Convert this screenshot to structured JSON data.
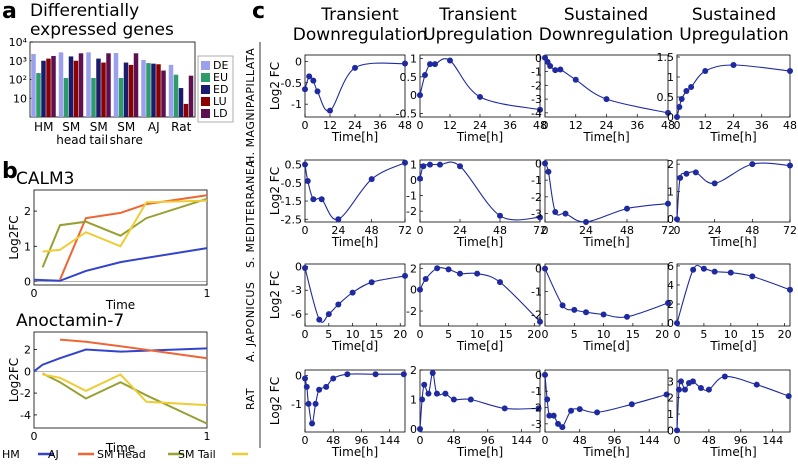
{
  "panel_labels": {
    "a": "a",
    "b": "b",
    "c": "c"
  },
  "panel_a_title": [
    "Differentially",
    "expressed genes"
  ],
  "panel_c_col_titles": [
    [
      "Transient",
      "Downregulation"
    ],
    [
      "Transient",
      "Upregulation"
    ],
    [
      "Sustained",
      "Downregulation"
    ],
    [
      "Sustained",
      "Upregulation"
    ]
  ],
  "panel_c_row_labels": [
    "H. MAGNIPAPILLATA",
    "S. MEDITERRANEA",
    "A. JAPONICUS",
    "RAT"
  ],
  "colors": {
    "DE": "#9aa0ee",
    "EU": "#2e9b6a",
    "ED": "#1a1a6e",
    "LU": "#8b0000",
    "LD": "#5c1050",
    "HM": "#3344cc",
    "AJ": "#ee6633",
    "SM_Head": "#99a033",
    "SM_Tail": "#eecc33",
    "line_c": "#1f2aa0"
  },
  "chart_data": [
    {
      "id": "a",
      "type": "bar",
      "title": "Differentially expressed genes",
      "log_scale": true,
      "ylim": [
        1,
        10000
      ],
      "y_ticks": [
        "10",
        "10²",
        "10³",
        "10⁴"
      ],
      "categories": [
        "HM",
        "SM\nhead",
        "SM\ntail",
        "SM\nshare",
        "AJ",
        "Rat"
      ],
      "category_labels": [
        [
          "HM"
        ],
        [
          "SM",
          "head"
        ],
        [
          "SM",
          "tail"
        ],
        [
          "SM",
          "share"
        ],
        [
          "AJ"
        ],
        [
          "Rat"
        ]
      ],
      "legend_position": "right",
      "series": [
        {
          "name": "DE",
          "values": [
            2300,
            2800,
            2800,
            2600,
            1100,
            600
          ]
        },
        {
          "name": "EU",
          "values": [
            220,
            120,
            120,
            120,
            750,
            180
          ]
        },
        {
          "name": "ED",
          "values": [
            1000,
            1700,
            1300,
            800,
            700,
            35
          ]
        },
        {
          "name": "LU",
          "values": [
            1300,
            1000,
            800,
            600,
            650,
            5
          ]
        },
        {
          "name": "LD",
          "values": [
            1800,
            2500,
            2500,
            2500,
            300,
            160
          ]
        }
      ]
    },
    {
      "id": "b1",
      "type": "line",
      "title": "CALM3",
      "xlabel": "Time",
      "ylabel": "Log2FC",
      "xlim": [
        0,
        1
      ],
      "ylim": [
        -0.1,
        2.6
      ],
      "x_ticks": [
        "0",
        "1"
      ],
      "y_ticks": [
        0,
        1,
        2
      ],
      "series": [
        {
          "name": "HM",
          "x": [
            0,
            0.15,
            0.3,
            0.5,
            1.0
          ],
          "y": [
            0.05,
            0.02,
            0.3,
            0.55,
            0.95
          ]
        },
        {
          "name": "AJ",
          "x": [
            0.15,
            0.3,
            0.5,
            0.65,
            1.0
          ],
          "y": [
            0.05,
            1.8,
            1.95,
            2.2,
            2.45
          ]
        },
        {
          "name": "SM Head",
          "x": [
            0.05,
            0.15,
            0.3,
            0.5,
            0.65,
            1.0
          ],
          "y": [
            0.4,
            1.6,
            1.7,
            1.3,
            1.8,
            2.35
          ]
        },
        {
          "name": "SM Tail",
          "x": [
            0.05,
            0.15,
            0.3,
            0.5,
            0.65,
            1.0
          ],
          "y": [
            0.85,
            0.9,
            1.4,
            1.0,
            2.25,
            2.3
          ]
        }
      ]
    },
    {
      "id": "b2",
      "type": "line",
      "title": "Anoctamin-7",
      "xlabel": "Time",
      "ylabel": "Log2FC",
      "xlim": [
        0,
        1
      ],
      "ylim": [
        -5.2,
        3.6
      ],
      "x_ticks": [
        "0",
        "1"
      ],
      "y_ticks": [
        -4,
        -2,
        0,
        2
      ],
      "series": [
        {
          "name": "HM",
          "x": [
            0,
            0.05,
            0.15,
            0.3,
            0.5,
            1.0
          ],
          "y": [
            0,
            0.6,
            1.2,
            2.0,
            1.8,
            2.1
          ]
        },
        {
          "name": "AJ",
          "x": [
            0.15,
            0.3,
            0.5,
            1.0
          ],
          "y": [
            2.9,
            2.7,
            2.3,
            1.2
          ]
        },
        {
          "name": "SM Head",
          "x": [
            0.05,
            0.15,
            0.3,
            0.5,
            0.65,
            1.0
          ],
          "y": [
            -0.2,
            -1.0,
            -2.5,
            -1.0,
            -2.2,
            -4.8
          ]
        },
        {
          "name": "SM Tail",
          "x": [
            0.05,
            0.15,
            0.3,
            0.5,
            0.65,
            1.0
          ],
          "y": [
            -0.3,
            -0.6,
            -1.8,
            -0.3,
            -2.8,
            -3.1
          ]
        }
      ],
      "legend": [
        "HM",
        "AJ",
        "SM Head",
        "SM Tail"
      ]
    },
    {
      "id": "c_HM_TD",
      "type": "line",
      "ylabel": "Log2 FC",
      "xlabel": "Time[h]",
      "xlim": [
        0,
        48
      ],
      "x_ticks": [
        0,
        12,
        24,
        36,
        48
      ],
      "ylim": [
        -1.3,
        0.15
      ],
      "y_ticks": [
        0,
        -0.5,
        -1
      ],
      "x": [
        0,
        2,
        4,
        6,
        12,
        24,
        48
      ],
      "y": [
        -0.65,
        -0.35,
        -0.45,
        -0.7,
        -1.15,
        -0.15,
        -0.05
      ]
    },
    {
      "id": "c_HM_TU",
      "type": "line",
      "ylabel": "",
      "xlabel": "Time[h]",
      "xlim": [
        0,
        48
      ],
      "x_ticks": [
        0,
        12,
        24,
        36,
        48
      ],
      "ylim": [
        -0.6,
        1.1
      ],
      "y_ticks": [
        1,
        0.5,
        0,
        -0.5
      ],
      "x": [
        0,
        2,
        4,
        6,
        12,
        24,
        48
      ],
      "y": [
        0,
        0.55,
        0.85,
        0.85,
        0.95,
        -0.05,
        -0.4
      ]
    },
    {
      "id": "c_HM_SD",
      "type": "line",
      "ylabel": "",
      "xlabel": "Time[h]",
      "xlim": [
        0,
        48
      ],
      "x_ticks": [
        0,
        12,
        24,
        36,
        48
      ],
      "ylim": [
        -4.3,
        0.2
      ],
      "y_ticks": [
        0,
        -1,
        -2,
        -3,
        -4
      ],
      "x": [
        0,
        1,
        2,
        4,
        6,
        12,
        24,
        48
      ],
      "y": [
        0,
        -0.3,
        -0.6,
        -0.9,
        -0.85,
        -1.6,
        -3.0,
        -4.0
      ]
    },
    {
      "id": "c_HM_SU",
      "type": "line",
      "ylabel": "",
      "xlabel": "Time[h]",
      "xlim": [
        0,
        48
      ],
      "x_ticks": [
        0,
        12,
        24,
        36,
        48
      ],
      "ylim": [
        0,
        1.55
      ],
      "y_ticks": [
        1.5,
        1,
        0.5,
        0
      ],
      "x": [
        0,
        1,
        2,
        4,
        6,
        12,
        24,
        48
      ],
      "y": [
        0,
        0.25,
        0.45,
        0.65,
        0.75,
        1.15,
        1.3,
        1.15
      ]
    },
    {
      "id": "c_SM_TD",
      "type": "line",
      "ylabel": "Log2 FC",
      "xlabel": "Time[h]",
      "xlim": [
        0,
        72
      ],
      "x_ticks": [
        0,
        24,
        48,
        72
      ],
      "ylim": [
        -2.65,
        0.75
      ],
      "y_ticks": [
        "0.5",
        "-0.5",
        "-1.5",
        "-2.5"
      ],
      "x": [
        0,
        2,
        6,
        12,
        24,
        48,
        72
      ],
      "y": [
        0.5,
        -0.4,
        -1.4,
        -1.4,
        -2.5,
        -0.3,
        0.6
      ]
    },
    {
      "id": "c_SM_TU",
      "type": "line",
      "ylabel": "",
      "xlabel": "Time[h]",
      "xlim": [
        0,
        72
      ],
      "x_ticks": [
        0,
        24,
        48,
        72
      ],
      "ylim": [
        -2.7,
        1.3
      ],
      "y_ticks": [
        1,
        0,
        -1,
        -2
      ],
      "x": [
        0,
        2,
        6,
        12,
        24,
        48,
        72
      ],
      "y": [
        0.1,
        0.9,
        1.0,
        1.0,
        0.9,
        -2.3,
        -2.4
      ]
    },
    {
      "id": "c_SM_SD",
      "type": "line",
      "ylabel": "",
      "xlabel": "Time[h]",
      "xlim": [
        0,
        72
      ],
      "x_ticks": [
        0,
        24,
        48,
        72
      ],
      "ylim": [
        -3.5,
        0.2
      ],
      "y_ticks": [
        0,
        -1,
        -2,
        -3
      ],
      "x": [
        0,
        2,
        6,
        12,
        24,
        48,
        72
      ],
      "y": [
        0,
        -0.5,
        -2.9,
        -3.0,
        -3.5,
        -2.7,
        -2.4
      ]
    },
    {
      "id": "c_SM_SU",
      "type": "line",
      "ylabel": "",
      "xlabel": "Time[h]",
      "xlim": [
        0,
        72
      ],
      "x_ticks": [
        0,
        24,
        48,
        72
      ],
      "ylim": [
        -0.1,
        2.15
      ],
      "y_ticks": [
        2,
        1,
        0
      ],
      "x": [
        0,
        2,
        6,
        12,
        24,
        48,
        72
      ],
      "y": [
        0,
        1.5,
        1.65,
        1.7,
        1.3,
        2.0,
        1.95
      ]
    },
    {
      "id": "c_AJ_TD",
      "type": "line",
      "ylabel": "Log2 FC",
      "xlabel": "Time[d]",
      "xlim": [
        0,
        21
      ],
      "x_ticks": [
        0,
        5,
        10,
        15,
        20
      ],
      "ylim": [
        -7.5,
        0.3
      ],
      "y_ticks": [
        0,
        -3,
        -6
      ],
      "x": [
        0,
        3,
        5,
        7,
        10,
        14,
        21
      ],
      "y": [
        -0.2,
        -6.7,
        -6.0,
        -4.8,
        -3.3,
        -2.0,
        -1.2
      ]
    },
    {
      "id": "c_AJ_TU",
      "type": "line",
      "ylabel": "",
      "xlabel": "Time[d]",
      "xlim": [
        0,
        21
      ],
      "x_ticks": [
        0,
        5,
        10,
        15,
        20
      ],
      "ylim": [
        -3.4,
        2.4
      ],
      "y_ticks": [
        2,
        0,
        -2
      ],
      "x": [
        0,
        1,
        3,
        5,
        7,
        10,
        14,
        21
      ],
      "y": [
        0,
        1.0,
        2.0,
        1.9,
        1.5,
        1.5,
        0.7,
        -3.0
      ]
    },
    {
      "id": "c_AJ_SD",
      "type": "line",
      "ylabel": "",
      "xlabel": "Time[d]",
      "xlim": [
        0,
        21
      ],
      "x_ticks": [
        0,
        5,
        10,
        15,
        20
      ],
      "ylim": [
        -2.5,
        0.2
      ],
      "y_ticks": [
        0,
        -1,
        -2
      ],
      "x": [
        0,
        3,
        5,
        7,
        10,
        14,
        21
      ],
      "y": [
        0,
        -1.6,
        -1.8,
        -1.9,
        -2.0,
        -2.1,
        -1.5
      ]
    },
    {
      "id": "c_AJ_SU",
      "type": "line",
      "ylabel": "",
      "xlabel": "Time[d]",
      "xlim": [
        0,
        21
      ],
      "x_ticks": [
        0,
        5,
        10,
        15,
        20
      ],
      "ylim": [
        -0.3,
        6.2
      ],
      "y_ticks": [
        6,
        4,
        2,
        0
      ],
      "x": [
        0,
        3,
        5,
        7,
        10,
        14,
        21
      ],
      "y": [
        0,
        5.6,
        5.7,
        5.4,
        5.3,
        4.9,
        3.5
      ]
    },
    {
      "id": "c_RAT_TD",
      "type": "line",
      "ylabel": "Log2 FC",
      "xlabel": "Time[h]",
      "xlim": [
        0,
        170
      ],
      "x_ticks": [
        0,
        48,
        96,
        144
      ],
      "ylim": [
        -2.0,
        0.2
      ],
      "y_ticks": [
        0,
        -1
      ],
      "x": [
        0,
        3,
        6,
        12,
        18,
        24,
        36,
        48,
        72,
        120,
        168
      ],
      "y": [
        -0.1,
        -0.4,
        -1.0,
        -1.7,
        -1.0,
        -0.5,
        -0.4,
        -0.1,
        0.05,
        0.05,
        0.05
      ]
    },
    {
      "id": "c_RAT_TU",
      "type": "line",
      "ylabel": "",
      "xlabel": "Time[h]",
      "xlim": [
        0,
        170
      ],
      "x_ticks": [
        0,
        48,
        96,
        144
      ],
      "ylim": [
        -0.1,
        2.0
      ],
      "y_ticks": [
        2,
        1,
        0
      ],
      "x": [
        0,
        3,
        6,
        12,
        18,
        24,
        36,
        48,
        72,
        120,
        168
      ],
      "y": [
        0,
        1.0,
        1.5,
        1.2,
        1.9,
        1.2,
        1.2,
        1.0,
        1.0,
        0.7,
        0.7
      ]
    },
    {
      "id": "c_RAT_SD",
      "type": "line",
      "ylabel": "",
      "xlabel": "Time[h]",
      "xlim": [
        0,
        170
      ],
      "x_ticks": [
        0,
        48,
        96,
        144
      ],
      "ylim": [
        -3.5,
        0.3
      ],
      "y_ticks": [
        0,
        -1,
        -2,
        -3
      ],
      "x": [
        0,
        3,
        6,
        12,
        18,
        24,
        36,
        48,
        72,
        120,
        168
      ],
      "y": [
        0,
        -1.5,
        -2.5,
        -2.5,
        -3.0,
        -3.2,
        -2.2,
        -2.1,
        -2.3,
        -1.8,
        -1.2
      ]
    },
    {
      "id": "c_RAT_SU",
      "type": "line",
      "ylabel": "",
      "xlabel": "Time[h]",
      "xlim": [
        0,
        170
      ],
      "x_ticks": [
        0,
        48,
        96,
        144
      ],
      "ylim": [
        -0.1,
        3.7
      ],
      "y_ticks": [
        3,
        2,
        1,
        0
      ],
      "x": [
        0,
        3,
        6,
        12,
        18,
        24,
        36,
        48,
        72,
        120,
        168
      ],
      "y": [
        0,
        2.5,
        3.0,
        2.5,
        2.9,
        3.0,
        2.6,
        2.5,
        3.3,
        2.8,
        2.1
      ]
    }
  ]
}
